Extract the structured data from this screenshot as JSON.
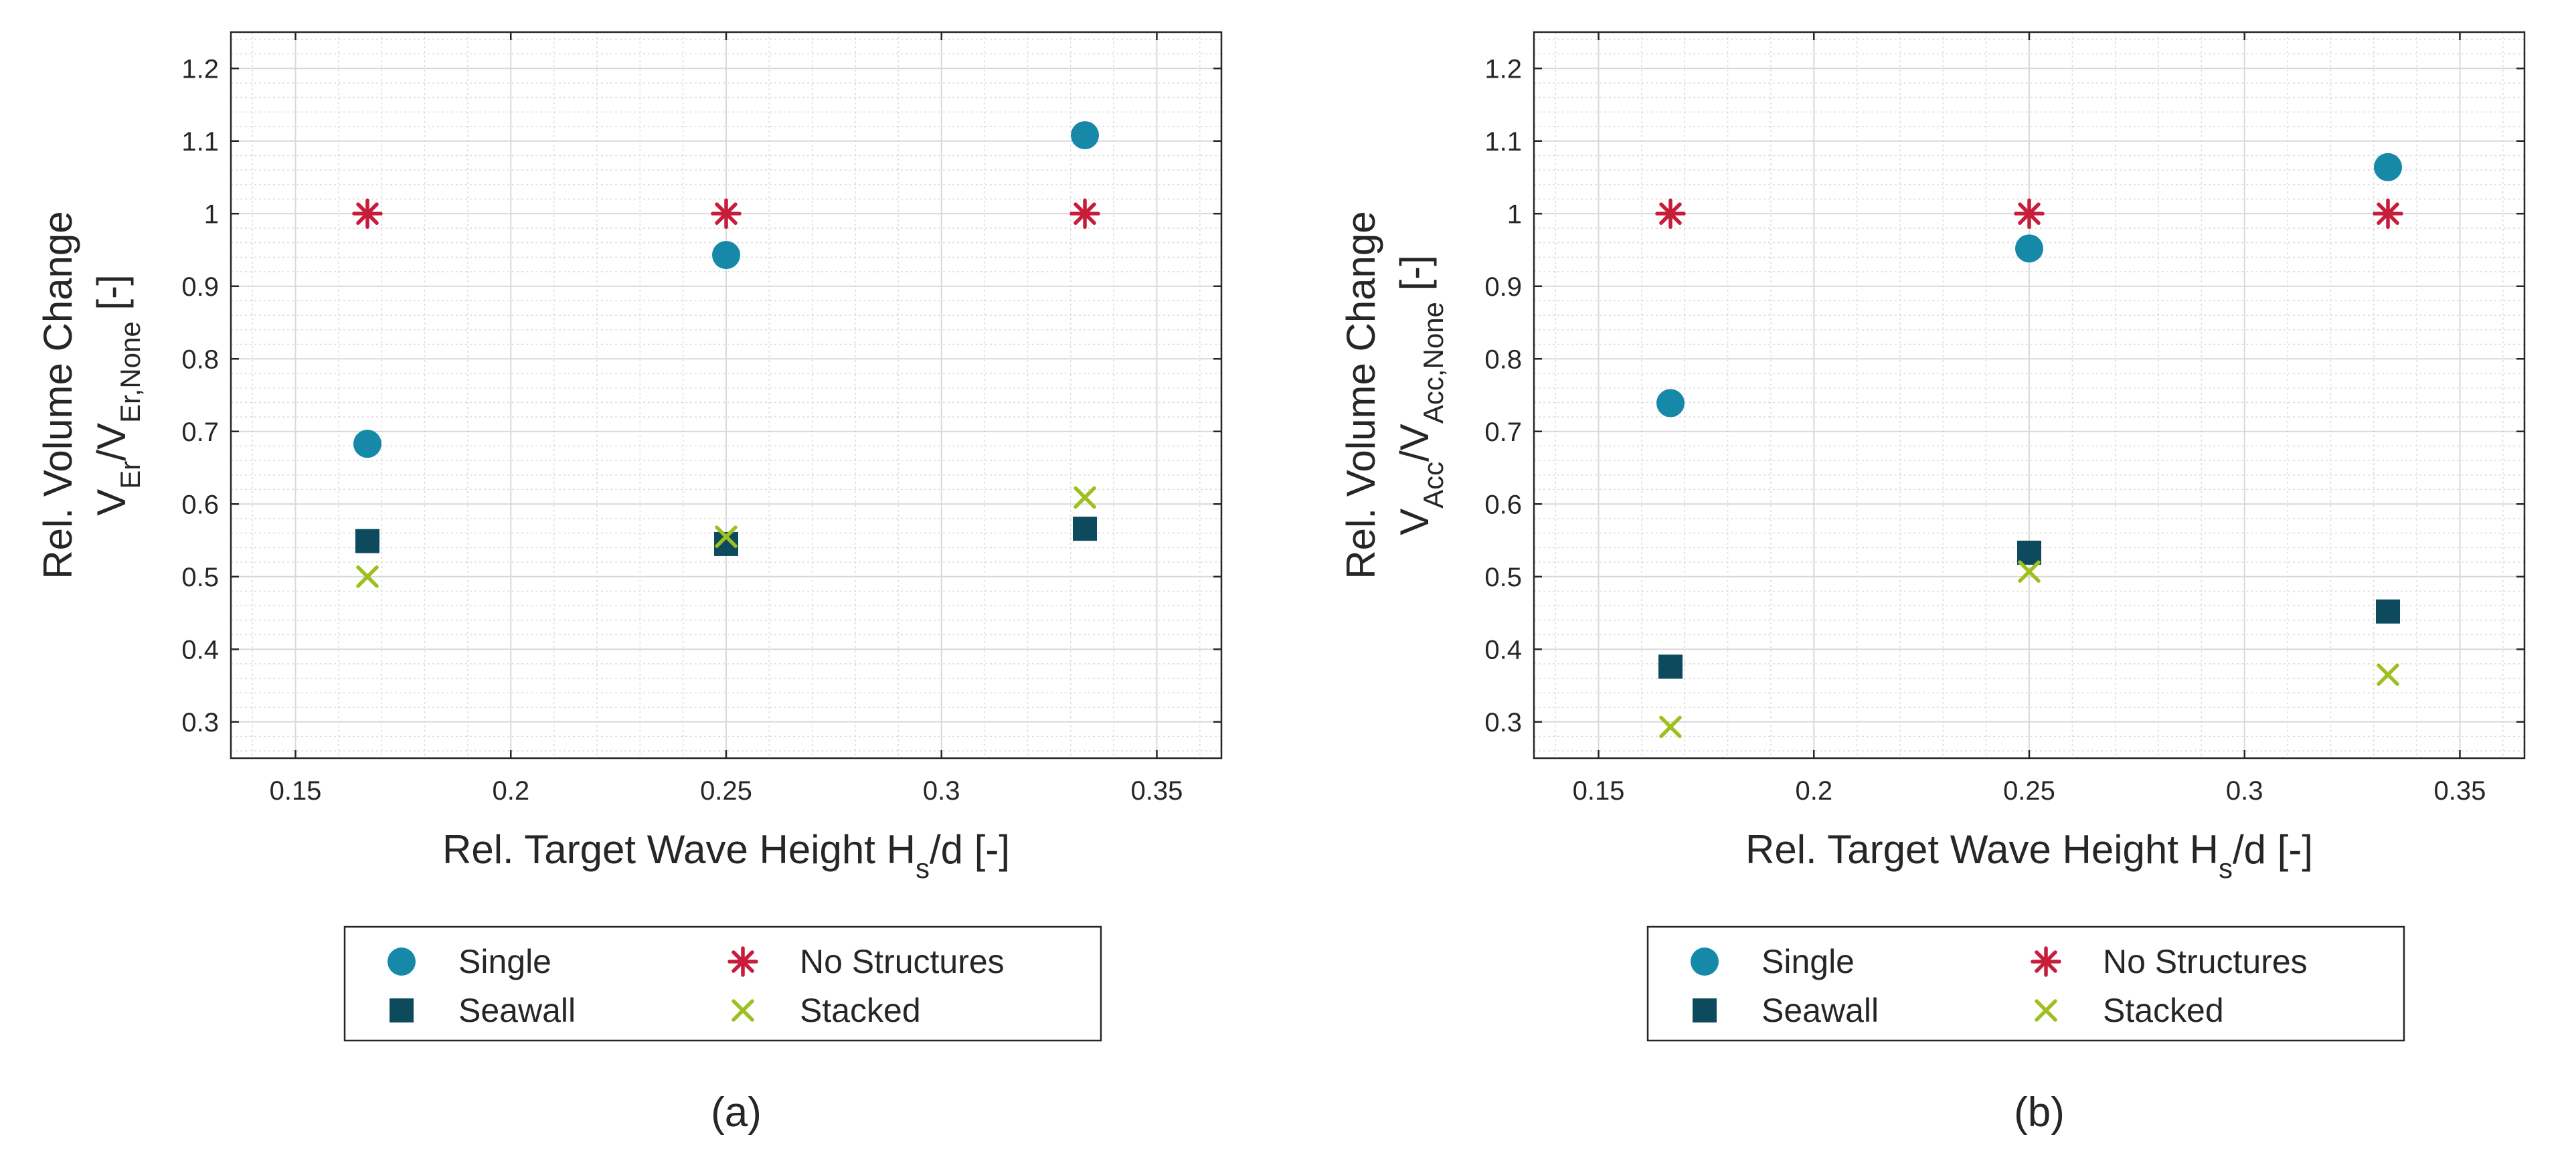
{
  "chart_data": [
    {
      "panel_label": "(a)",
      "type": "scatter",
      "xlabel": {
        "main": "Rel. Target Wave Height H",
        "sub": "s",
        "tail": "/d [-]"
      },
      "ylabel": {
        "line1": "Rel. Volume Change",
        "line2": {
          "v1": "V",
          "s1": "Er",
          "slash": "/V",
          "s2": "Er,None",
          "unit": " [-]"
        }
      },
      "xlim": [
        0.135,
        0.365
      ],
      "ylim": [
        0.25,
        1.25
      ],
      "xticks": [
        0.15,
        0.2,
        0.25,
        0.3,
        0.35
      ],
      "xtick_labels": [
        "0.15",
        "0.2",
        "0.25",
        "0.3",
        "0.35"
      ],
      "yticks": [
        0.3,
        0.4,
        0.5,
        0.6,
        0.7,
        0.8,
        0.9,
        1.0,
        1.1,
        1.2
      ],
      "ytick_labels": [
        "0.3",
        "0.4",
        "0.5",
        "0.6",
        "0.7",
        "0.8",
        "0.9",
        "1",
        "1.1",
        "1.2"
      ],
      "grid": true,
      "legend": [
        "Single",
        "No Structures",
        "Seawall",
        "Stacked"
      ],
      "series": [
        {
          "name": "Single",
          "marker": "circle",
          "color": "#1688a8",
          "x": [
            0.1667,
            0.25,
            0.3333
          ],
          "y": [
            0.683,
            0.943,
            1.108
          ]
        },
        {
          "name": "Seawall",
          "marker": "square",
          "color": "#0d4a5e",
          "x": [
            0.1667,
            0.25,
            0.3333
          ],
          "y": [
            0.549,
            0.545,
            0.566
          ]
        },
        {
          "name": "No Structures",
          "marker": "asterisk",
          "color": "#c81d3a",
          "x": [
            0.1667,
            0.25,
            0.3333
          ],
          "y": [
            1.0,
            1.0,
            1.0
          ]
        },
        {
          "name": "Stacked",
          "marker": "x",
          "color": "#9dc020",
          "x": [
            0.1667,
            0.25,
            0.3333
          ],
          "y": [
            0.5,
            0.555,
            0.609
          ]
        }
      ]
    },
    {
      "panel_label": "(b)",
      "type": "scatter",
      "xlabel": {
        "main": "Rel. Target Wave Height H",
        "sub": "s",
        "tail": "/d [-]"
      },
      "ylabel": {
        "line1": "Rel. Volume Change",
        "line2": {
          "v1": "V",
          "s1": "Acc",
          "slash": "/V",
          "s2": "Acc,None",
          "unit": " [-]"
        }
      },
      "xlim": [
        0.135,
        0.365
      ],
      "ylim": [
        0.25,
        1.25
      ],
      "xticks": [
        0.15,
        0.2,
        0.25,
        0.3,
        0.35
      ],
      "xtick_labels": [
        "0.15",
        "0.2",
        "0.25",
        "0.3",
        "0.35"
      ],
      "yticks": [
        0.3,
        0.4,
        0.5,
        0.6,
        0.7,
        0.8,
        0.9,
        1.0,
        1.1,
        1.2
      ],
      "ytick_labels": [
        "0.3",
        "0.4",
        "0.5",
        "0.6",
        "0.7",
        "0.8",
        "0.9",
        "1",
        "1.1",
        "1.2"
      ],
      "grid": true,
      "legend": [
        "Single",
        "No Structures",
        "Seawall",
        "Stacked"
      ],
      "series": [
        {
          "name": "Single",
          "marker": "circle",
          "color": "#1688a8",
          "x": [
            0.1667,
            0.25,
            0.3333
          ],
          "y": [
            0.739,
            0.952,
            1.064
          ]
        },
        {
          "name": "Seawall",
          "marker": "square",
          "color": "#0d4a5e",
          "x": [
            0.1667,
            0.25,
            0.3333
          ],
          "y": [
            0.376,
            0.533,
            0.452
          ]
        },
        {
          "name": "No Structures",
          "marker": "asterisk",
          "color": "#c81d3a",
          "x": [
            0.1667,
            0.25,
            0.3333
          ],
          "y": [
            1.0,
            1.0,
            1.0
          ]
        },
        {
          "name": "Stacked",
          "marker": "x",
          "color": "#9dc020",
          "x": [
            0.1667,
            0.25,
            0.3333
          ],
          "y": [
            0.293,
            0.507,
            0.365
          ]
        }
      ]
    }
  ]
}
